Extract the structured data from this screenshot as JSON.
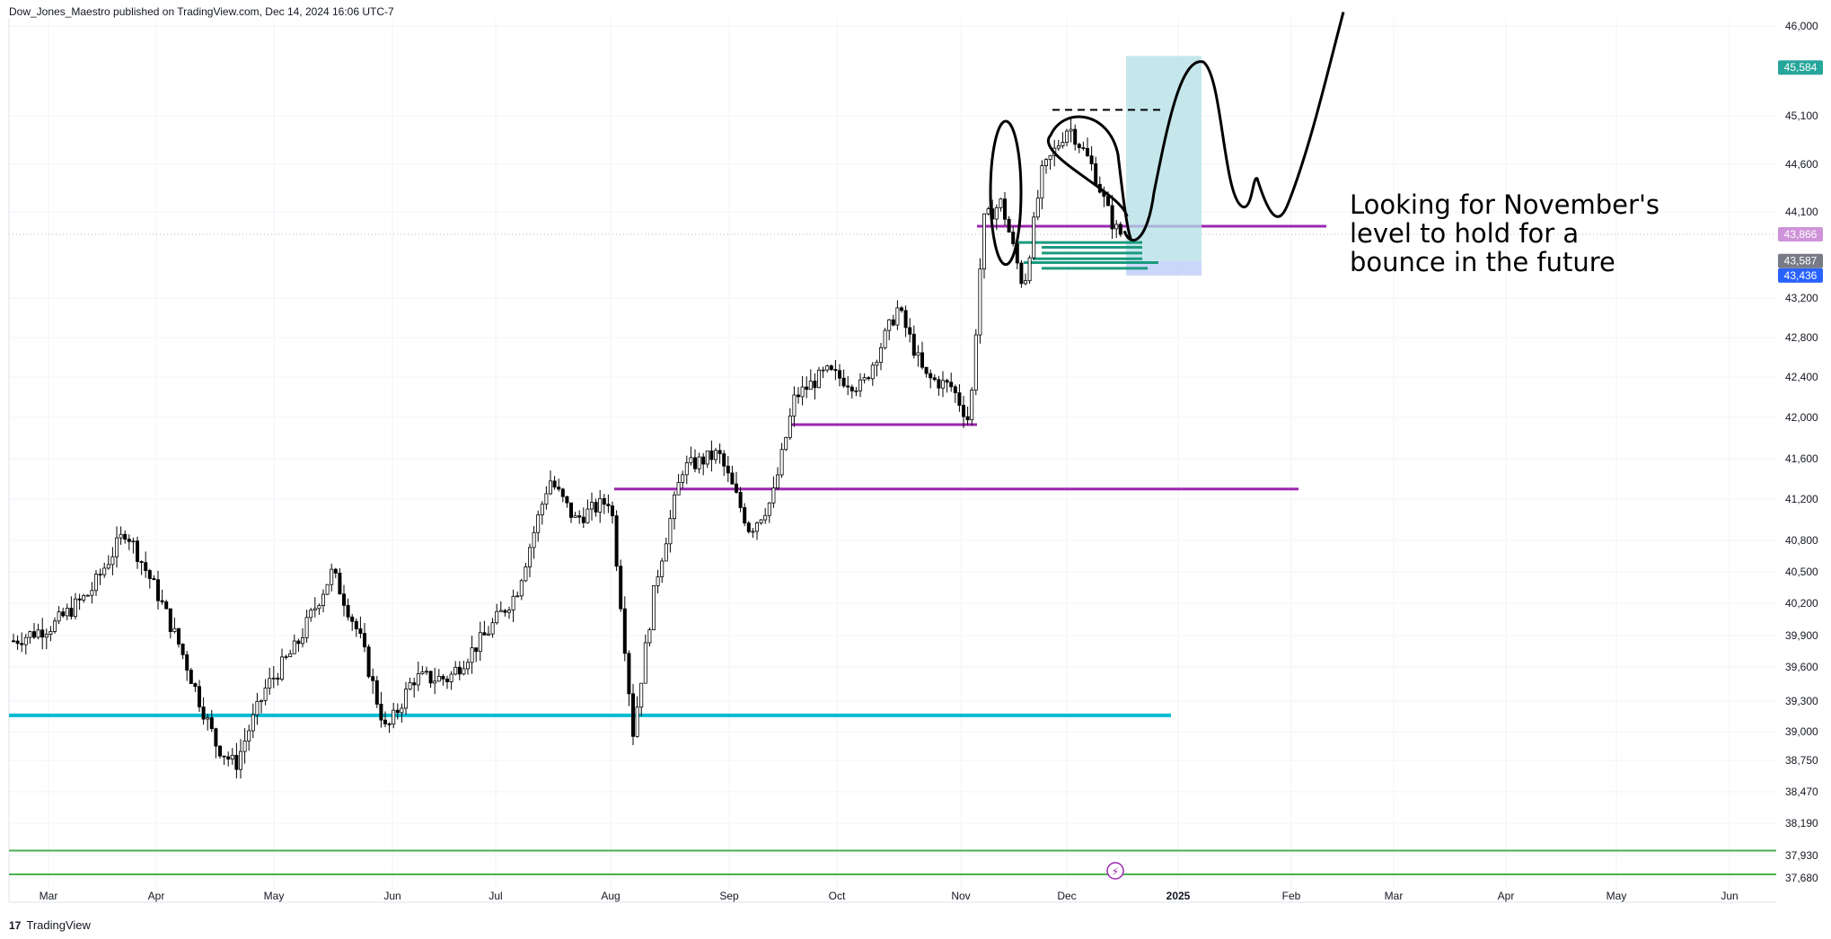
{
  "header": {
    "published_by": "Dow_Jones_Maestro published on TradingView.com, Dec 14, 2024 16:06 UTC-7"
  },
  "footer": {
    "brand": "TradingView",
    "logo_text": "17"
  },
  "chart_data": {
    "type": "candlestick",
    "x_axis": {
      "labels": [
        "Mar",
        "Apr",
        "May",
        "Jun",
        "Jul",
        "Aug",
        "Sep",
        "Oct",
        "Nov",
        "Dec",
        "2025",
        "Feb",
        "Mar",
        "Apr",
        "May",
        "Jun"
      ]
    },
    "y_axis": {
      "labels": [
        "46,000",
        "45,100",
        "44,600",
        "44,100",
        "43,200",
        "42,800",
        "42,400",
        "42,000",
        "41,600",
        "41,200",
        "40,800",
        "40,500",
        "40,200",
        "39,900",
        "39,600",
        "39,300",
        "39,000",
        "38,750",
        "38,470",
        "38,190",
        "37,930",
        "37,680"
      ],
      "values": [
        46000,
        45100,
        44600,
        44100,
        43200,
        42800,
        42400,
        42000,
        41600,
        41200,
        40800,
        40500,
        40200,
        39900,
        39600,
        39300,
        39000,
        38750,
        38470,
        38190,
        37930,
        37680
      ]
    },
    "price_tags": [
      {
        "label": "45,584",
        "value": 45584,
        "color": "#26a69a"
      },
      {
        "label": "43,866",
        "value": 43866,
        "color": "#ce93d8"
      },
      {
        "label": "43,587",
        "value": 43587,
        "color": "#787b86"
      },
      {
        "label": "43,436",
        "value": 43436,
        "color": "#2962ff"
      }
    ],
    "horizontal_levels": [
      {
        "value": 39160,
        "color": "#00bcd4",
        "from": "Mar",
        "to": "Dec"
      },
      {
        "value": 41300,
        "color": "#9c27b0",
        "from": "Aug",
        "to": "Feb"
      },
      {
        "value": 41930,
        "color": "#9c27b0",
        "from": "Sep",
        "to": "Nov"
      },
      {
        "value": 43950,
        "color": "#9c27b0",
        "from": "Nov",
        "to": "Feb"
      },
      {
        "value": 37970,
        "color": "#4caf50",
        "from": "Mar",
        "to": "Jun"
      },
      {
        "value": 37720,
        "color": "#4caf50",
        "from": "Mar",
        "to": "Jun"
      }
    ],
    "projection_box": {
      "top": 45700,
      "bottom": 43436,
      "entry": 43587,
      "color": "#b2dfe6"
    },
    "annotation": [
      "Looking for November's",
      "level to hold for a",
      "bounce in the future"
    ],
    "last_close": 43866
  }
}
